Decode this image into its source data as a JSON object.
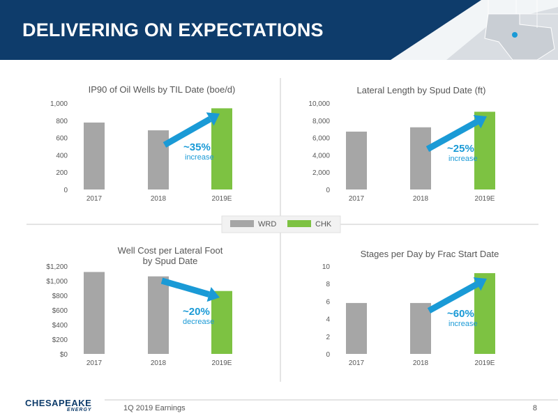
{
  "header": {
    "title": "DELIVERING ON EXPECTATIONS"
  },
  "legend": {
    "items": [
      {
        "label": "WRD",
        "color": "#a6a6a6"
      },
      {
        "label": "CHK",
        "color": "#7dc242"
      }
    ]
  },
  "colors": {
    "header_bg": "#0e3c6b",
    "arrow": "#1a9ad6",
    "callout_text": "#1a9ad6",
    "wrd": "#a6a6a6",
    "chk": "#7dc242"
  },
  "chart_data": [
    {
      "type": "bar",
      "title": "IP90 of Oil Wells by TIL Date (boe/d)",
      "categories": [
        "2017",
        "2018",
        "2019E"
      ],
      "values": [
        775,
        685,
        940
      ],
      "series_by_bar": [
        "WRD",
        "WRD",
        "CHK"
      ],
      "ylim": [
        0,
        1000
      ],
      "yticks": [
        "0",
        "200",
        "400",
        "600",
        "800",
        "1,000"
      ],
      "callout": {
        "value": "~35%",
        "label": "increase"
      }
    },
    {
      "type": "bar",
      "title": "Lateral Length by Spud Date (ft)",
      "categories": [
        "2017",
        "2018",
        "2019E"
      ],
      "values": [
        6700,
        7200,
        9000
      ],
      "series_by_bar": [
        "WRD",
        "WRD",
        "CHK"
      ],
      "ylim": [
        0,
        10000
      ],
      "yticks": [
        "0",
        "2,000",
        "4,000",
        "6,000",
        "8,000",
        "10,000"
      ],
      "callout": {
        "value": "~25%",
        "label": "increase"
      }
    },
    {
      "type": "bar",
      "title": "Well Cost per Lateral Foot by Spud Date",
      "categories": [
        "2017",
        "2018",
        "2019E"
      ],
      "values": [
        1120,
        1060,
        860
      ],
      "series_by_bar": [
        "WRD",
        "WRD",
        "CHK"
      ],
      "ylim": [
        0,
        1200
      ],
      "yticks": [
        "$0",
        "$200",
        "$400",
        "$600",
        "$800",
        "$1,000",
        "$1,200"
      ],
      "callout": {
        "value": "~20%",
        "label": "decrease"
      }
    },
    {
      "type": "bar",
      "title": "Stages per Day by Frac Start Date",
      "categories": [
        "2017",
        "2018",
        "2019E"
      ],
      "values": [
        5.8,
        5.8,
        9.2
      ],
      "series_by_bar": [
        "WRD",
        "WRD",
        "CHK"
      ],
      "ylim": [
        0,
        10
      ],
      "yticks": [
        "0",
        "2",
        "4",
        "6",
        "8",
        "10"
      ],
      "callout": {
        "value": "~60%",
        "label": "increase"
      }
    }
  ],
  "footer": {
    "text": "1Q 2019 Earnings",
    "page": "8",
    "logo_name": "CHESAPEAKE",
    "logo_sub": "ENERGY"
  }
}
